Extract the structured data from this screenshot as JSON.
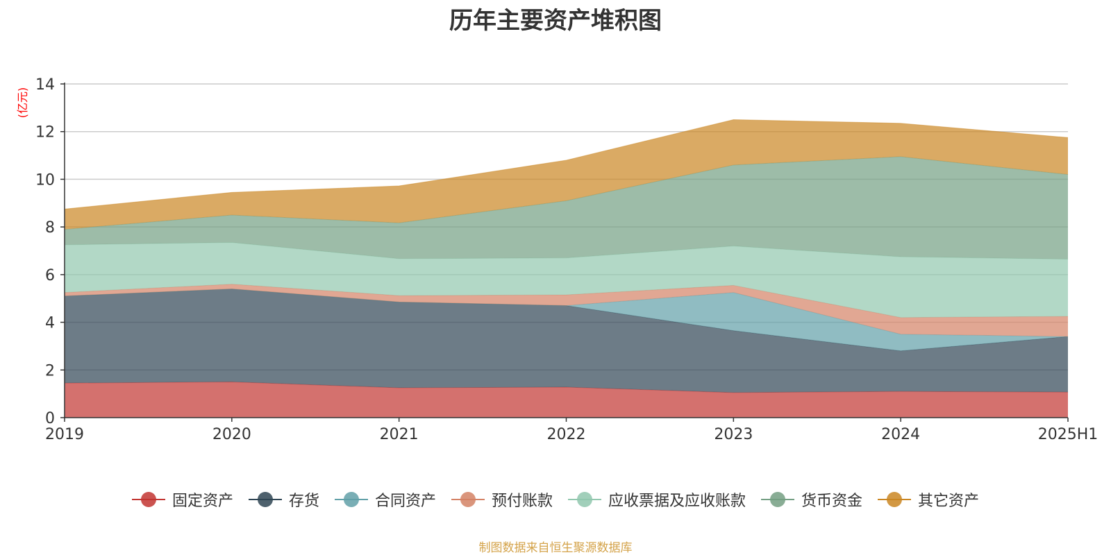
{
  "chart_data": {
    "type": "area",
    "stacked": true,
    "title": "历年主要资产堆积图",
    "ylabel": "(亿元)",
    "xlabel": "",
    "x": [
      "2019",
      "2020",
      "2021",
      "2022",
      "2023",
      "2024",
      "2025H1"
    ],
    "ylim": [
      0,
      14
    ],
    "yticks": [
      0,
      2,
      4,
      6,
      8,
      10,
      12,
      14
    ],
    "grid": true,
    "legend_position": "bottom",
    "series": [
      {
        "name": "固定资产",
        "color": "#c23531",
        "values": [
          1.45,
          1.5,
          1.25,
          1.28,
          1.05,
          1.1,
          1.07
        ]
      },
      {
        "name": "存货",
        "color": "#2f4554",
        "values": [
          3.65,
          3.9,
          3.6,
          3.42,
          2.6,
          1.7,
          2.33
        ]
      },
      {
        "name": "合同资产",
        "color": "#61a0a8",
        "values": [
          0,
          0,
          0,
          0,
          1.6,
          0.7,
          0
        ]
      },
      {
        "name": "预付账款",
        "color": "#d48265",
        "values": [
          0.15,
          0.2,
          0.27,
          0.45,
          0.3,
          0.7,
          0.85
        ]
      },
      {
        "name": "应收票据及应收账款",
        "color": "#91c7ae",
        "values": [
          2.0,
          1.75,
          1.55,
          1.55,
          1.65,
          2.55,
          2.4
        ]
      },
      {
        "name": "货币资金",
        "color": "#749f83",
        "values": [
          0.65,
          1.15,
          1.5,
          2.4,
          3.4,
          4.2,
          3.55
        ]
      },
      {
        "name": "其它资产",
        "color": "#ca8622",
        "values": [
          0.85,
          0.95,
          1.55,
          1.7,
          1.9,
          1.4,
          1.55
        ]
      }
    ]
  },
  "source_note": "制图数据来自恒生聚源数据库"
}
